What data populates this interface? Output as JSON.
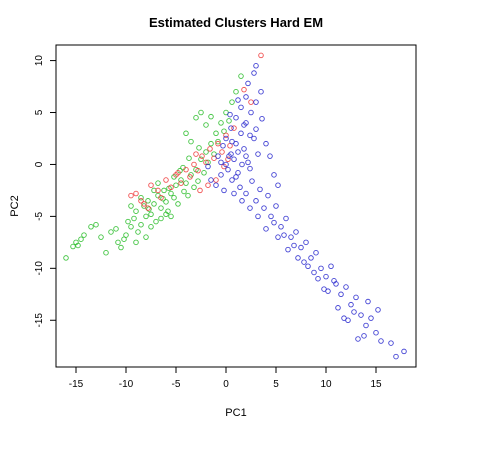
{
  "chart_data": {
    "type": "scatter",
    "title": "Estimated Clusters Hard EM",
    "xlabel": "PC1",
    "ylabel": "PC2",
    "xlim": [
      -17,
      19
    ],
    "ylim": [
      -19.5,
      11.5
    ],
    "x_ticks": [
      -15,
      -10,
      -5,
      0,
      5,
      10,
      15
    ],
    "y_ticks": [
      -15,
      -10,
      -5,
      0,
      5,
      10
    ],
    "grid": false,
    "legend": "none",
    "marker": "open-circle",
    "series": [
      {
        "color": "#22bb22",
        "values": [
          [
            -15.0,
            -7.5
          ],
          [
            -14.8,
            -7.8
          ],
          [
            -14.5,
            -7.2
          ],
          [
            -14.2,
            -6.8
          ],
          [
            -15.3,
            -7.9
          ],
          [
            -16.0,
            -9.0
          ],
          [
            -13.5,
            -6.0
          ],
          [
            -13.0,
            -5.8
          ],
          [
            -12.5,
            -7.0
          ],
          [
            -12.0,
            -8.5
          ],
          [
            -11.5,
            -6.5
          ],
          [
            -11.0,
            -6.2
          ],
          [
            -10.8,
            -7.5
          ],
          [
            -10.5,
            -8.0
          ],
          [
            -10.2,
            -7.2
          ],
          [
            -10.0,
            -6.8
          ],
          [
            -9.8,
            -5.5
          ],
          [
            -9.5,
            -6.0
          ],
          [
            -9.2,
            -5.2
          ],
          [
            -9.0,
            -4.5
          ],
          [
            -8.8,
            -6.5
          ],
          [
            -8.5,
            -5.8
          ],
          [
            -8.2,
            -4.0
          ],
          [
            -8.0,
            -5.0
          ],
          [
            -7.8,
            -3.5
          ],
          [
            -7.5,
            -4.8
          ],
          [
            -7.2,
            -3.8
          ],
          [
            -7.0,
            -5.5
          ],
          [
            -6.8,
            -3.0
          ],
          [
            -6.5,
            -4.2
          ],
          [
            -6.2,
            -2.5
          ],
          [
            -6.0,
            -3.6
          ],
          [
            -5.8,
            -4.5
          ],
          [
            -5.5,
            -2.8
          ],
          [
            -5.2,
            -3.2
          ],
          [
            -5.0,
            -2.0
          ],
          [
            -4.8,
            -3.8
          ],
          [
            -4.5,
            -1.5
          ],
          [
            -4.2,
            -2.6
          ],
          [
            -4.0,
            -1.8
          ],
          [
            -3.8,
            -3.0
          ],
          [
            -3.5,
            -1.0
          ],
          [
            -3.2,
            -2.2
          ],
          [
            -3.0,
            -0.5
          ],
          [
            -2.8,
            -1.6
          ],
          [
            -2.5,
            0.5
          ],
          [
            -2.2,
            -0.8
          ],
          [
            -2.0,
            1.2
          ],
          [
            -1.8,
            0.2
          ],
          [
            -1.5,
            2.0
          ],
          [
            -1.2,
            1.0
          ],
          [
            -1.0,
            3.0
          ],
          [
            -0.8,
            2.2
          ],
          [
            -0.5,
            4.0
          ],
          [
            -0.2,
            3.2
          ],
          [
            0.0,
            5.0
          ],
          [
            0.3,
            4.2
          ],
          [
            0.6,
            6.0
          ],
          [
            1.0,
            7.0
          ],
          [
            1.5,
            8.5
          ],
          [
            -3.0,
            4.5
          ],
          [
            -2.5,
            5.0
          ],
          [
            -2.0,
            3.8
          ],
          [
            -1.5,
            4.6
          ],
          [
            -4.0,
            3.0
          ],
          [
            -3.5,
            2.2
          ],
          [
            -6.5,
            -5.2
          ],
          [
            -7.5,
            -6.0
          ],
          [
            -8.0,
            -7.0
          ],
          [
            -9.0,
            -7.5
          ],
          [
            -6.0,
            -4.8
          ],
          [
            -5.5,
            -5.0
          ],
          [
            -7.2,
            -2.5
          ],
          [
            -8.5,
            -3.2
          ],
          [
            -9.5,
            -4.0
          ],
          [
            -6.8,
            -1.8
          ],
          [
            -5.2,
            -1.2
          ],
          [
            -4.6,
            -0.6
          ],
          [
            -6.3,
            -3.3
          ],
          [
            -7.7,
            -4.3
          ],
          [
            -5.7,
            -2.3
          ],
          [
            -4.3,
            -0.3
          ],
          [
            -3.7,
            0.6
          ],
          [
            -2.7,
            1.6
          ]
        ]
      },
      {
        "color": "#ee3333",
        "values": [
          [
            -9.5,
            -3.0
          ],
          [
            -9.0,
            -2.8
          ],
          [
            -8.5,
            -3.5
          ],
          [
            -7.5,
            -2.0
          ],
          [
            -6.8,
            -2.5
          ],
          [
            -6.0,
            -1.5
          ],
          [
            -5.5,
            -2.2
          ],
          [
            -5.0,
            -1.0
          ],
          [
            -4.5,
            -1.8
          ],
          [
            -4.0,
            -0.5
          ],
          [
            -3.6,
            -1.2
          ],
          [
            -3.2,
            0.0
          ],
          [
            -2.8,
            -0.6
          ],
          [
            -2.4,
            0.8
          ],
          [
            -2.0,
            0.2
          ],
          [
            -1.6,
            1.5
          ],
          [
            -1.2,
            0.6
          ],
          [
            -0.8,
            2.0
          ],
          [
            -0.4,
            1.2
          ],
          [
            0.0,
            2.8
          ],
          [
            0.4,
            1.8
          ],
          [
            0.8,
            3.5
          ],
          [
            -1.0,
            -1.5
          ],
          [
            -1.8,
            -2.0
          ],
          [
            -2.6,
            -2.5
          ],
          [
            0.2,
            0.5
          ],
          [
            -0.2,
            -0.2
          ],
          [
            3.5,
            10.5
          ],
          [
            1.8,
            7.2
          ],
          [
            2.5,
            6.0
          ],
          [
            -3.0,
            1.0
          ],
          [
            -4.8,
            -0.8
          ],
          [
            -6.5,
            -3.2
          ],
          [
            -7.8,
            -4.2
          ],
          [
            -8.2,
            -3.8
          ]
        ]
      },
      {
        "color": "#2222cc",
        "values": [
          [
            -1.0,
            -2.0
          ],
          [
            -0.5,
            -1.0
          ],
          [
            0.0,
            0.0
          ],
          [
            0.5,
            1.0
          ],
          [
            1.0,
            2.0
          ],
          [
            1.5,
            3.0
          ],
          [
            2.0,
            4.0
          ],
          [
            2.5,
            5.0
          ],
          [
            3.0,
            6.0
          ],
          [
            3.5,
            7.0
          ],
          [
            0.2,
            -0.5
          ],
          [
            0.8,
            0.5
          ],
          [
            1.2,
            -0.8
          ],
          [
            1.8,
            1.5
          ],
          [
            2.2,
            0.2
          ],
          [
            2.8,
            2.5
          ],
          [
            3.2,
            1.0
          ],
          [
            0.5,
            3.5
          ],
          [
            1.0,
            4.5
          ],
          [
            1.5,
            5.5
          ],
          [
            2.0,
            6.5
          ],
          [
            0.0,
            2.5
          ],
          [
            -0.3,
            1.8
          ],
          [
            0.6,
            -1.5
          ],
          [
            1.4,
            -2.2
          ],
          [
            2.0,
            -2.8
          ],
          [
            2.6,
            -1.6
          ],
          [
            3.0,
            -3.5
          ],
          [
            3.4,
            -2.4
          ],
          [
            3.8,
            -4.2
          ],
          [
            4.2,
            -3.0
          ],
          [
            4.5,
            -5.0
          ],
          [
            5.0,
            -4.0
          ],
          [
            5.5,
            -6.0
          ],
          [
            6.0,
            -5.2
          ],
          [
            6.5,
            -7.0
          ],
          [
            7.0,
            -6.5
          ],
          [
            7.5,
            -8.0
          ],
          [
            8.0,
            -7.5
          ],
          [
            8.5,
            -9.0
          ],
          [
            9.0,
            -8.5
          ],
          [
            9.5,
            -10.0
          ],
          [
            10.0,
            -10.8
          ],
          [
            10.5,
            -9.8
          ],
          [
            11.0,
            -11.5
          ],
          [
            11.5,
            -12.5
          ],
          [
            12.0,
            -11.8
          ],
          [
            12.5,
            -13.5
          ],
          [
            13.0,
            -12.8
          ],
          [
            13.5,
            -14.5
          ],
          [
            14.0,
            -15.5
          ],
          [
            14.5,
            -14.8
          ],
          [
            15.0,
            -16.2
          ],
          [
            15.5,
            -17.0
          ],
          [
            16.5,
            -17.2
          ],
          [
            17.0,
            -18.5
          ],
          [
            17.8,
            -18.0
          ],
          [
            12.2,
            -15.0
          ],
          [
            11.2,
            -13.8
          ],
          [
            13.8,
            -16.5
          ],
          [
            10.2,
            -12.2
          ],
          [
            9.2,
            -11.0
          ],
          [
            8.2,
            -9.8
          ],
          [
            7.2,
            -9.0
          ],
          [
            6.2,
            -8.2
          ],
          [
            5.2,
            -7.0
          ],
          [
            4.0,
            -6.2
          ],
          [
            3.2,
            -5.0
          ],
          [
            2.4,
            -4.2
          ],
          [
            1.6,
            -3.5
          ],
          [
            0.8,
            -2.8
          ],
          [
            -0.2,
            -2.5
          ],
          [
            -1.5,
            -1.5
          ],
          [
            -1.8,
            -0.2
          ],
          [
            -0.8,
            0.8
          ],
          [
            0.4,
            4.8
          ],
          [
            1.2,
            6.2
          ],
          [
            2.2,
            7.8
          ],
          [
            2.8,
            8.8
          ],
          [
            3.0,
            9.5
          ],
          [
            1.8,
            3.8
          ],
          [
            2.4,
            2.8
          ],
          [
            3.0,
            3.4
          ],
          [
            3.6,
            4.4
          ],
          [
            4.0,
            2.0
          ],
          [
            4.4,
            0.8
          ],
          [
            4.8,
            -1.0
          ],
          [
            5.2,
            -2.0
          ],
          [
            2.0,
            0.8
          ],
          [
            1.2,
            1.2
          ],
          [
            0.6,
            2.2
          ],
          [
            1.6,
            0.0
          ],
          [
            2.4,
            -0.4
          ],
          [
            1.0,
            -1.2
          ],
          [
            0.3,
            0.8
          ],
          [
            -0.5,
            0.2
          ],
          [
            14.2,
            -13.2
          ],
          [
            15.2,
            -14.0
          ],
          [
            12.8,
            -14.2
          ],
          [
            13.2,
            -16.8
          ],
          [
            11.8,
            -14.8
          ],
          [
            10.8,
            -11.2
          ],
          [
            9.8,
            -12.0
          ],
          [
            8.8,
            -10.4
          ],
          [
            7.8,
            -9.4
          ],
          [
            6.8,
            -7.8
          ],
          [
            5.8,
            -6.8
          ],
          [
            4.8,
            -5.6
          ]
        ]
      }
    ]
  }
}
